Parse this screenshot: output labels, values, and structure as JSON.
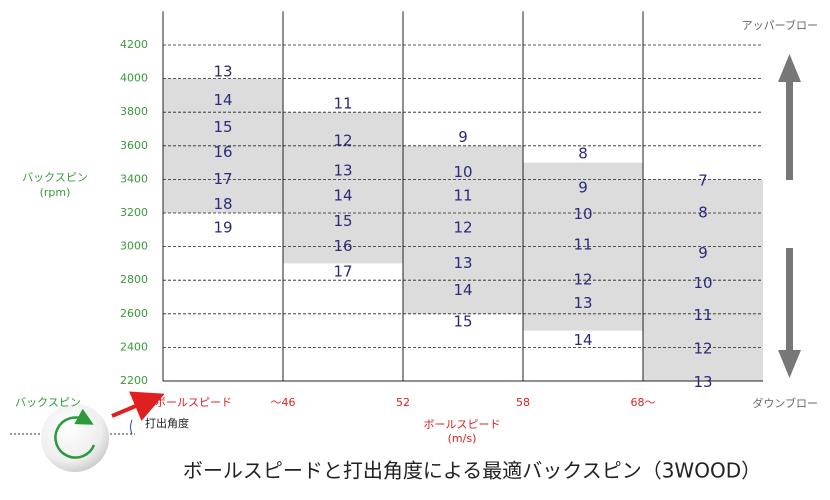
{
  "chart_data": {
    "type": "range",
    "title": "ボールスピードと打出角度による最適バックスピン（3WOOD）",
    "y_label": "バックスピン",
    "y_unit": "(rpm)",
    "x_label": "ボールスピード",
    "x_unit": "(m/s)",
    "speed_marker": "ボールスピード",
    "top_label": "アッパーブロー",
    "bottom_label": "ダウンブロー",
    "ball_spin_label": "バックスピン",
    "launch_label": "打出角度",
    "boundary_labels": [
      "～46",
      "52",
      "58",
      "68～"
    ],
    "ylim": [
      2200,
      4400
    ],
    "yticks": [
      2200,
      2400,
      2600,
      2800,
      3000,
      3200,
      3400,
      3600,
      3800,
      4000,
      4200
    ],
    "grid": true,
    "range_color": "#dcdcdc",
    "label_color": "#2b2b7a",
    "tick_color": "#3a9a3a",
    "columns": [
      {
        "low": 3200,
        "high": 4000,
        "points": [
          {
            "angle": 13,
            "spin": 4040
          },
          {
            "angle": 14,
            "spin": 3870
          },
          {
            "angle": 15,
            "spin": 3710
          },
          {
            "angle": 16,
            "spin": 3560
          },
          {
            "angle": 17,
            "spin": 3400
          },
          {
            "angle": 18,
            "spin": 3250
          },
          {
            "angle": 19,
            "spin": 3110
          }
        ]
      },
      {
        "low": 2900,
        "high": 3800,
        "points": [
          {
            "angle": 11,
            "spin": 3850
          },
          {
            "angle": 12,
            "spin": 3630
          },
          {
            "angle": 13,
            "spin": 3450
          },
          {
            "angle": 14,
            "spin": 3300
          },
          {
            "angle": 15,
            "spin": 3150
          },
          {
            "angle": 16,
            "spin": 3000
          },
          {
            "angle": 17,
            "spin": 2850
          }
        ]
      },
      {
        "low": 2600,
        "high": 3600,
        "points": [
          {
            "angle": 9,
            "spin": 3650
          },
          {
            "angle": 10,
            "spin": 3440
          },
          {
            "angle": 11,
            "spin": 3300
          },
          {
            "angle": 12,
            "spin": 3110
          },
          {
            "angle": 13,
            "spin": 2900
          },
          {
            "angle": 14,
            "spin": 2740
          },
          {
            "angle": 15,
            "spin": 2550
          }
        ]
      },
      {
        "low": 2500,
        "high": 3500,
        "points": [
          {
            "angle": 8,
            "spin": 3550
          },
          {
            "angle": 9,
            "spin": 3350
          },
          {
            "angle": 10,
            "spin": 3190
          },
          {
            "angle": 11,
            "spin": 3010
          },
          {
            "angle": 12,
            "spin": 2800
          },
          {
            "angle": 13,
            "spin": 2660
          },
          {
            "angle": 14,
            "spin": 2440
          }
        ]
      },
      {
        "low": 2200,
        "high": 3400,
        "points": [
          {
            "angle": 7,
            "spin": 3390
          },
          {
            "angle": 8,
            "spin": 3200
          },
          {
            "angle": 9,
            "spin": 2960
          },
          {
            "angle": 10,
            "spin": 2780
          },
          {
            "angle": 11,
            "spin": 2590
          },
          {
            "angle": 12,
            "spin": 2390
          },
          {
            "angle": 13,
            "spin": 2190
          }
        ]
      }
    ]
  }
}
